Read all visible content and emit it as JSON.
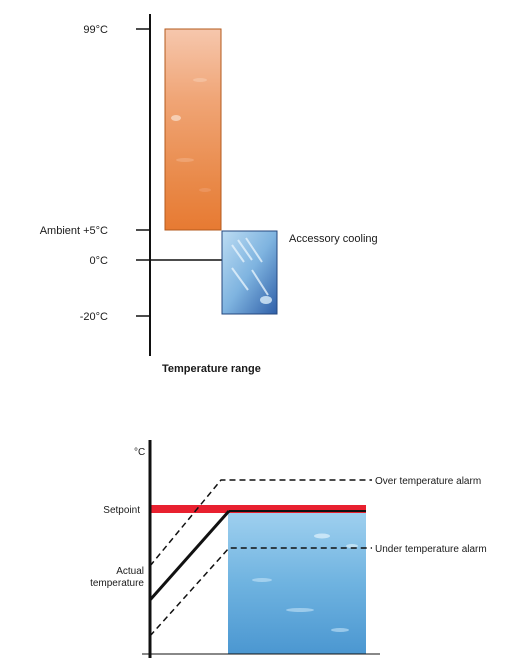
{
  "range_diagram": {
    "ticks": {
      "t99": "99°C",
      "ambient": "Ambient  +5°C",
      "zero": "0°C",
      "minus20": "-20°C"
    },
    "accessory_label": "Accessory cooling",
    "caption": "Temperature range",
    "colors": {
      "heating": "#e8793a",
      "cooling": "#5d9fd6"
    }
  },
  "alarm_diagram": {
    "unit_label": "°C",
    "setpoint_label": "Setpoint",
    "actual_label_line1": "Actual",
    "actual_label_line2": "temperature",
    "over_alarm_label": "Over temperature alarm",
    "under_alarm_label": "Under temperature alarm",
    "colors": {
      "setpoint_band": "#e8202f",
      "bath": "#6fb3e0"
    }
  }
}
